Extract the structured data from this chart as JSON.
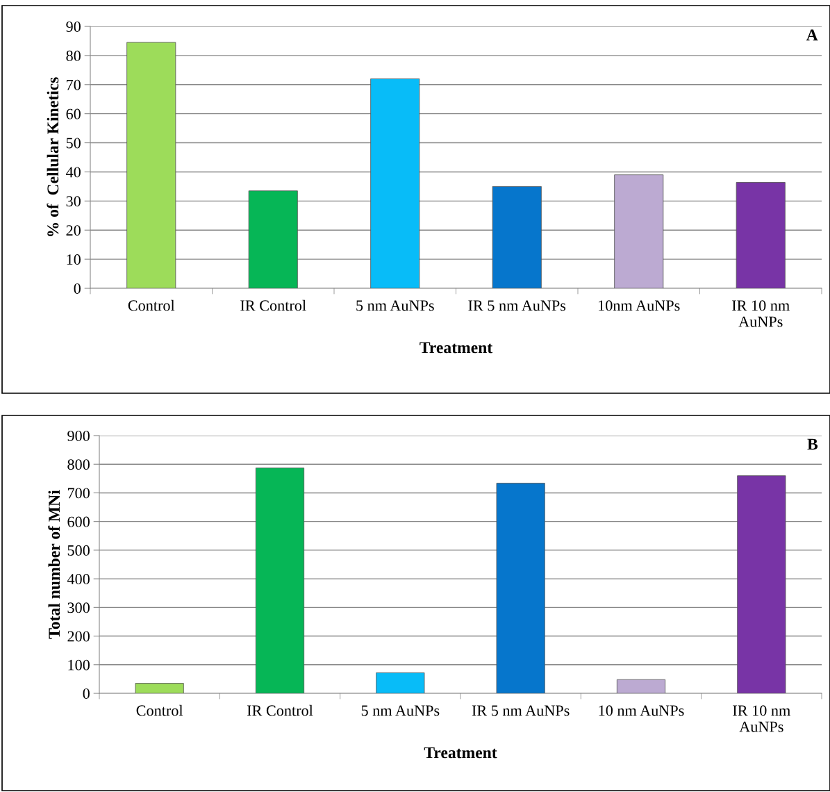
{
  "chart_data": [
    {
      "type": "bar",
      "xlabel": "Treatment",
      "ylabel": "% of  Cellular Kinetics",
      "annotations": [
        "A"
      ],
      "categories": [
        "Control",
        "IR Control",
        "5 nm AuNPs",
        "IR 5 nm AuNPs",
        "10nm AuNPs",
        "IR 10 nm\nAuNPs"
      ],
      "values": [
        84.5,
        33.5,
        72,
        35,
        39,
        36.4
      ],
      "colors": [
        "#9ddc5a",
        "#06b656",
        "#08bcf8",
        "#0676cc",
        "#bcaad2",
        "#7834a6"
      ],
      "ylim": [
        0,
        90
      ],
      "yticks": [
        0,
        10,
        20,
        30,
        40,
        50,
        60,
        70,
        80,
        90
      ],
      "grid": "y",
      "legend": false
    },
    {
      "type": "bar",
      "xlabel": "Treatment",
      "ylabel": "Total number of MNi",
      "annotations": [
        "B"
      ],
      "categories": [
        "Control",
        "IR Control",
        "5 nm AuNPs",
        "IR 5 nm AuNPs",
        "10 nm AuNPs",
        "IR 10 nm\nAuNPs"
      ],
      "values": [
        35,
        787,
        72,
        734,
        48,
        760
      ],
      "colors": [
        "#9ddc5a",
        "#06b656",
        "#08bcf8",
        "#0676cc",
        "#bcaad2",
        "#7834a6"
      ],
      "ylim": [
        0,
        900
      ],
      "yticks": [
        0,
        100,
        200,
        300,
        400,
        500,
        600,
        700,
        800,
        900
      ],
      "grid": "y",
      "legend": false
    }
  ]
}
